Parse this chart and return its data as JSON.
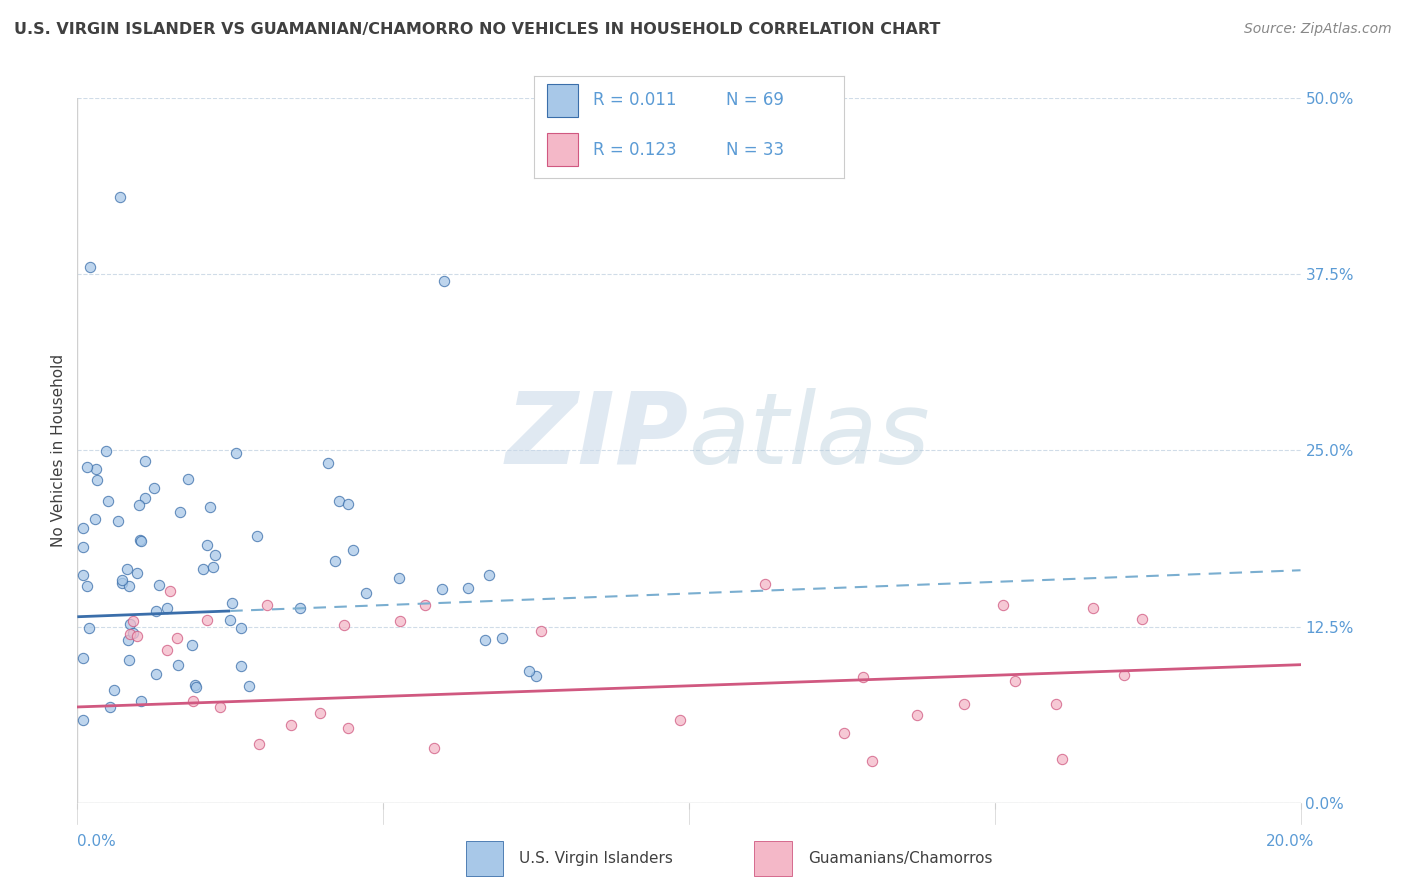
{
  "title": "U.S. VIRGIN ISLANDER VS GUAMANIAN/CHAMORRO NO VEHICLES IN HOUSEHOLD CORRELATION CHART",
  "source": "Source: ZipAtlas.com",
  "ylabel": "No Vehicles in Household",
  "xlim": [
    0.0,
    0.2
  ],
  "ylim": [
    0.0,
    0.5
  ],
  "xticks": [
    0.0,
    0.05,
    0.1,
    0.15,
    0.2
  ],
  "yticks_right": [
    0.0,
    0.125,
    0.25,
    0.375,
    0.5
  ],
  "r_blue": 0.011,
  "n_blue": 69,
  "r_pink": 0.123,
  "n_pink": 33,
  "blue_color": "#a8c8e8",
  "pink_color": "#f4b8c8",
  "blue_line_color": "#3a6eaa",
  "pink_line_color": "#d05880",
  "blue_dash_color": "#7aaed0",
  "title_color": "#404040",
  "tick_label_color": "#5b9bd5",
  "legend_label_blue": "U.S. Virgin Islanders",
  "legend_label_pink": "Guamanians/Chamorros",
  "watermark_zip": "ZIP",
  "watermark_atlas": "atlas",
  "grid_color": "#d0dce8",
  "border_color": "#d0d0d0"
}
